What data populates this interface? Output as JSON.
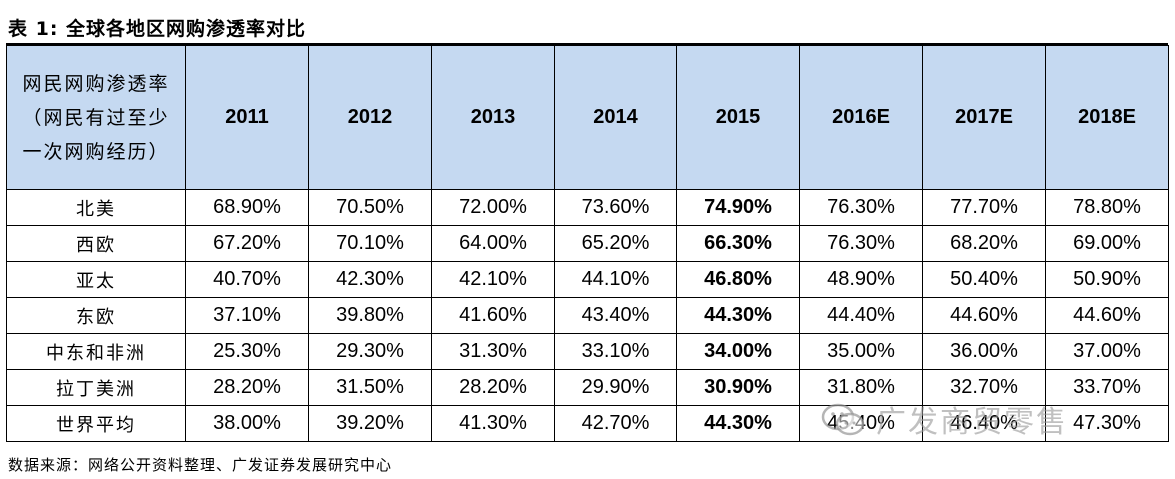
{
  "title": "表 1:  全球各地区网购渗透率对比",
  "table": {
    "corner_header": "网民网购渗透率（网民有过至少一次网购经历）",
    "columns": [
      "2011",
      "2012",
      "2013",
      "2014",
      "2015",
      "2016E",
      "2017E",
      "2018E"
    ],
    "rows": [
      {
        "region": "北美",
        "values": [
          "68.90%",
          "70.50%",
          "72.00%",
          "73.60%",
          "74.90%",
          "76.30%",
          "77.70%",
          "78.80%"
        ]
      },
      {
        "region": "西欧",
        "values": [
          "67.20%",
          "70.10%",
          "64.00%",
          "65.20%",
          "66.30%",
          "76.30%",
          "68.20%",
          "69.00%"
        ]
      },
      {
        "region": "亚太",
        "values": [
          "40.70%",
          "42.30%",
          "42.10%",
          "44.10%",
          "46.80%",
          "48.90%",
          "50.40%",
          "50.90%"
        ]
      },
      {
        "region": "东欧",
        "values": [
          "37.10%",
          "39.80%",
          "41.60%",
          "43.40%",
          "44.30%",
          "44.40%",
          "44.60%",
          "44.60%"
        ]
      },
      {
        "region": "中东和非洲",
        "values": [
          "25.30%",
          "29.30%",
          "31.30%",
          "33.10%",
          "34.00%",
          "35.00%",
          "36.00%",
          "37.00%"
        ]
      },
      {
        "region": "拉丁美洲",
        "values": [
          "28.20%",
          "31.50%",
          "28.20%",
          "29.90%",
          "30.90%",
          "31.80%",
          "32.70%",
          "33.70%"
        ]
      },
      {
        "region": "世界平均",
        "values": [
          "38.00%",
          "39.20%",
          "41.30%",
          "42.70%",
          "44.30%",
          "45.40%",
          "46.40%",
          "47.30%"
        ]
      }
    ]
  },
  "source": "数据来源：网络公开资料整理、广发证券发展研究中心",
  "watermark": "广发商贸零售",
  "colors": {
    "header_bg": "#c5d9f1"
  }
}
